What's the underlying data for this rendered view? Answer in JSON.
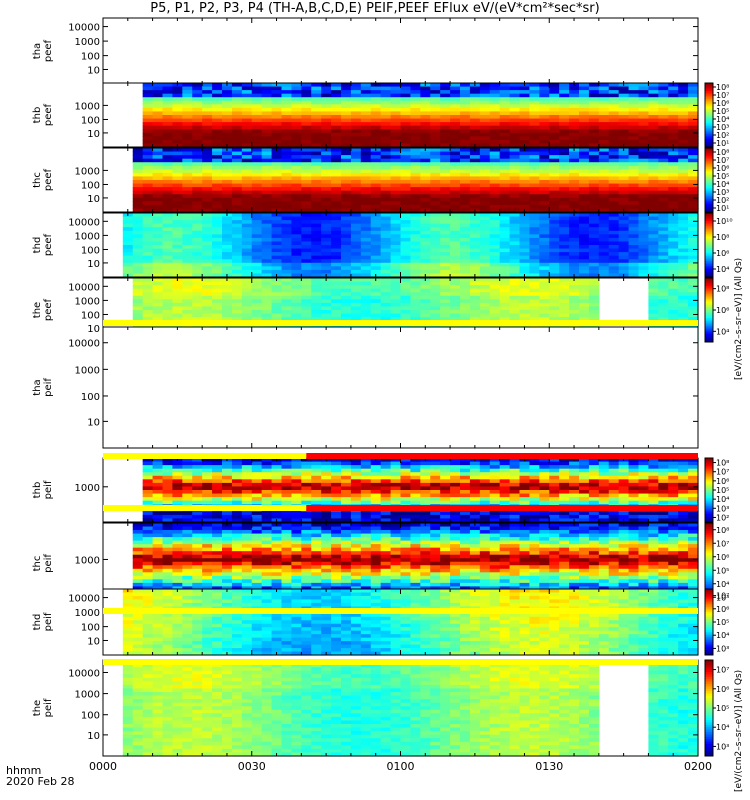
{
  "title": "P5, P1, P2, P3, P4 (TH-A,B,C,D,E) PEIF,PEEF EFlux eV/(eV*cm²*sec*sr)",
  "colorbar_label_eflux_electron": "[eV/(cm2–s–sr–eV)] (All Qs)",
  "colorbar_label_eflux_ion": "[eV/(cm2–s–sr–eV)] (All Qs)",
  "footer": {
    "time_label": "hhmm",
    "date_label": "2020 Feb 28"
  },
  "chart_data": {
    "type": "heatmap",
    "title": "P5, P1, P2, P3, P4 (TH-A,B,C,D,E) PEIF,PEEF EFlux eV/(eV*cm²*sec*sr)",
    "xlabel": "hhmm",
    "x_tick_labels": [
      "0000",
      "0030",
      "0100",
      "0130",
      "0200"
    ],
    "x_range_minutes": [
      0,
      120
    ],
    "panels": [
      {
        "id": "tha_peef",
        "ylabel": [
          "tha",
          "peef"
        ],
        "yticks": [
          "10000",
          "1000",
          "100",
          "10"
        ],
        "has_data": false,
        "data_start_min": 0,
        "gaps": [],
        "colorbar_ticks": [],
        "quality_bar": []
      },
      {
        "id": "thb_peef",
        "ylabel": [
          "thb",
          "peef"
        ],
        "yticks": [
          "1000",
          "100",
          "10"
        ],
        "has_data": true,
        "data_start_min": 8.5,
        "gaps": [],
        "pattern": "electron",
        "colorbar_ticks": [
          "10⁸",
          "10⁷",
          "10⁶",
          "10⁵",
          "10⁴",
          "10³",
          "10²",
          "10¹"
        ],
        "quality_bar": []
      },
      {
        "id": "thc_peef",
        "ylabel": [
          "thc",
          "peef"
        ],
        "yticks": [
          "1000",
          "100",
          "10"
        ],
        "has_data": true,
        "data_start_min": 6,
        "gaps": [],
        "pattern": "electron",
        "colorbar_ticks": [
          "10⁸",
          "10⁷",
          "10⁶",
          "10⁵",
          "10⁴",
          "10³",
          "10²",
          "10¹"
        ],
        "quality_bar": []
      },
      {
        "id": "thd_peef",
        "ylabel": [
          "thd",
          "peef"
        ],
        "yticks": [
          "10000",
          "1000",
          "100",
          "10"
        ],
        "has_data": true,
        "data_start_min": 4.5,
        "gaps": [],
        "pattern": "cyan",
        "colorbar_ticks": [
          "10¹⁰",
          "10⁸",
          "10⁶",
          "10⁴"
        ],
        "quality_bar": []
      },
      {
        "id": "the_peef",
        "ylabel": [
          "the",
          "peef"
        ],
        "yticks": [
          "10000",
          "1000",
          "100",
          "10"
        ],
        "has_data": true,
        "data_start_min": 6,
        "gaps": [
          [
            101,
            110
          ]
        ],
        "pattern": "green",
        "colorbar_ticks": [
          "10⁸",
          "10⁶",
          "10⁴"
        ],
        "quality_bar": [
          "yellow"
        ]
      },
      {
        "id": "tha_peif",
        "ylabel": [
          "tha",
          "peif"
        ],
        "yticks": [
          "10000",
          "1000",
          "100",
          "10"
        ],
        "has_data": false,
        "data_start_min": 0,
        "gaps": [],
        "colorbar_ticks": [],
        "quality_bar": []
      },
      {
        "id": "thb_peif",
        "ylabel": [
          "thb",
          "peif"
        ],
        "yticks": [
          "1000"
        ],
        "has_data": true,
        "data_start_min": 8.5,
        "gaps": [],
        "pattern": "ion",
        "colorbar_ticks": [
          "10⁸",
          "10⁷",
          "10⁶",
          "10⁵",
          "10⁴",
          "10³",
          "10²"
        ],
        "quality_bar": [
          "yellow",
          "red"
        ]
      },
      {
        "id": "thc_peif",
        "ylabel": [
          "thc",
          "peif"
        ],
        "yticks": [
          "1000"
        ],
        "has_data": true,
        "data_start_min": 6,
        "gaps": [],
        "pattern": "ion",
        "colorbar_ticks": [
          "10⁸",
          "10⁷",
          "10⁶",
          "10⁵",
          "10⁴",
          "10³"
        ],
        "quality_bar": [
          "yellow",
          "red"
        ]
      },
      {
        "id": "thd_peif",
        "ylabel": [
          "thd",
          "peif"
        ],
        "yticks": [
          "10000",
          "1000",
          "100",
          "10"
        ],
        "has_data": true,
        "data_start_min": 3.5,
        "gaps": [],
        "pattern": "yellowgreen",
        "colorbar_ticks": [
          "10⁷",
          "10⁶",
          "10⁵",
          "10⁴",
          "10³"
        ],
        "quality_bar": [
          "yellow"
        ]
      },
      {
        "id": "the_peif",
        "ylabel": [
          "the",
          "peif"
        ],
        "yticks": [
          "10000",
          "1000",
          "100",
          "10"
        ],
        "has_data": true,
        "data_start_min": 3.5,
        "gaps": [
          [
            101,
            110
          ]
        ],
        "pattern": "green",
        "colorbar_ticks": [
          "10⁷",
          "10⁶",
          "10⁵",
          "10⁴",
          "10³"
        ],
        "quality_bar": [
          "yellow"
        ]
      }
    ]
  }
}
